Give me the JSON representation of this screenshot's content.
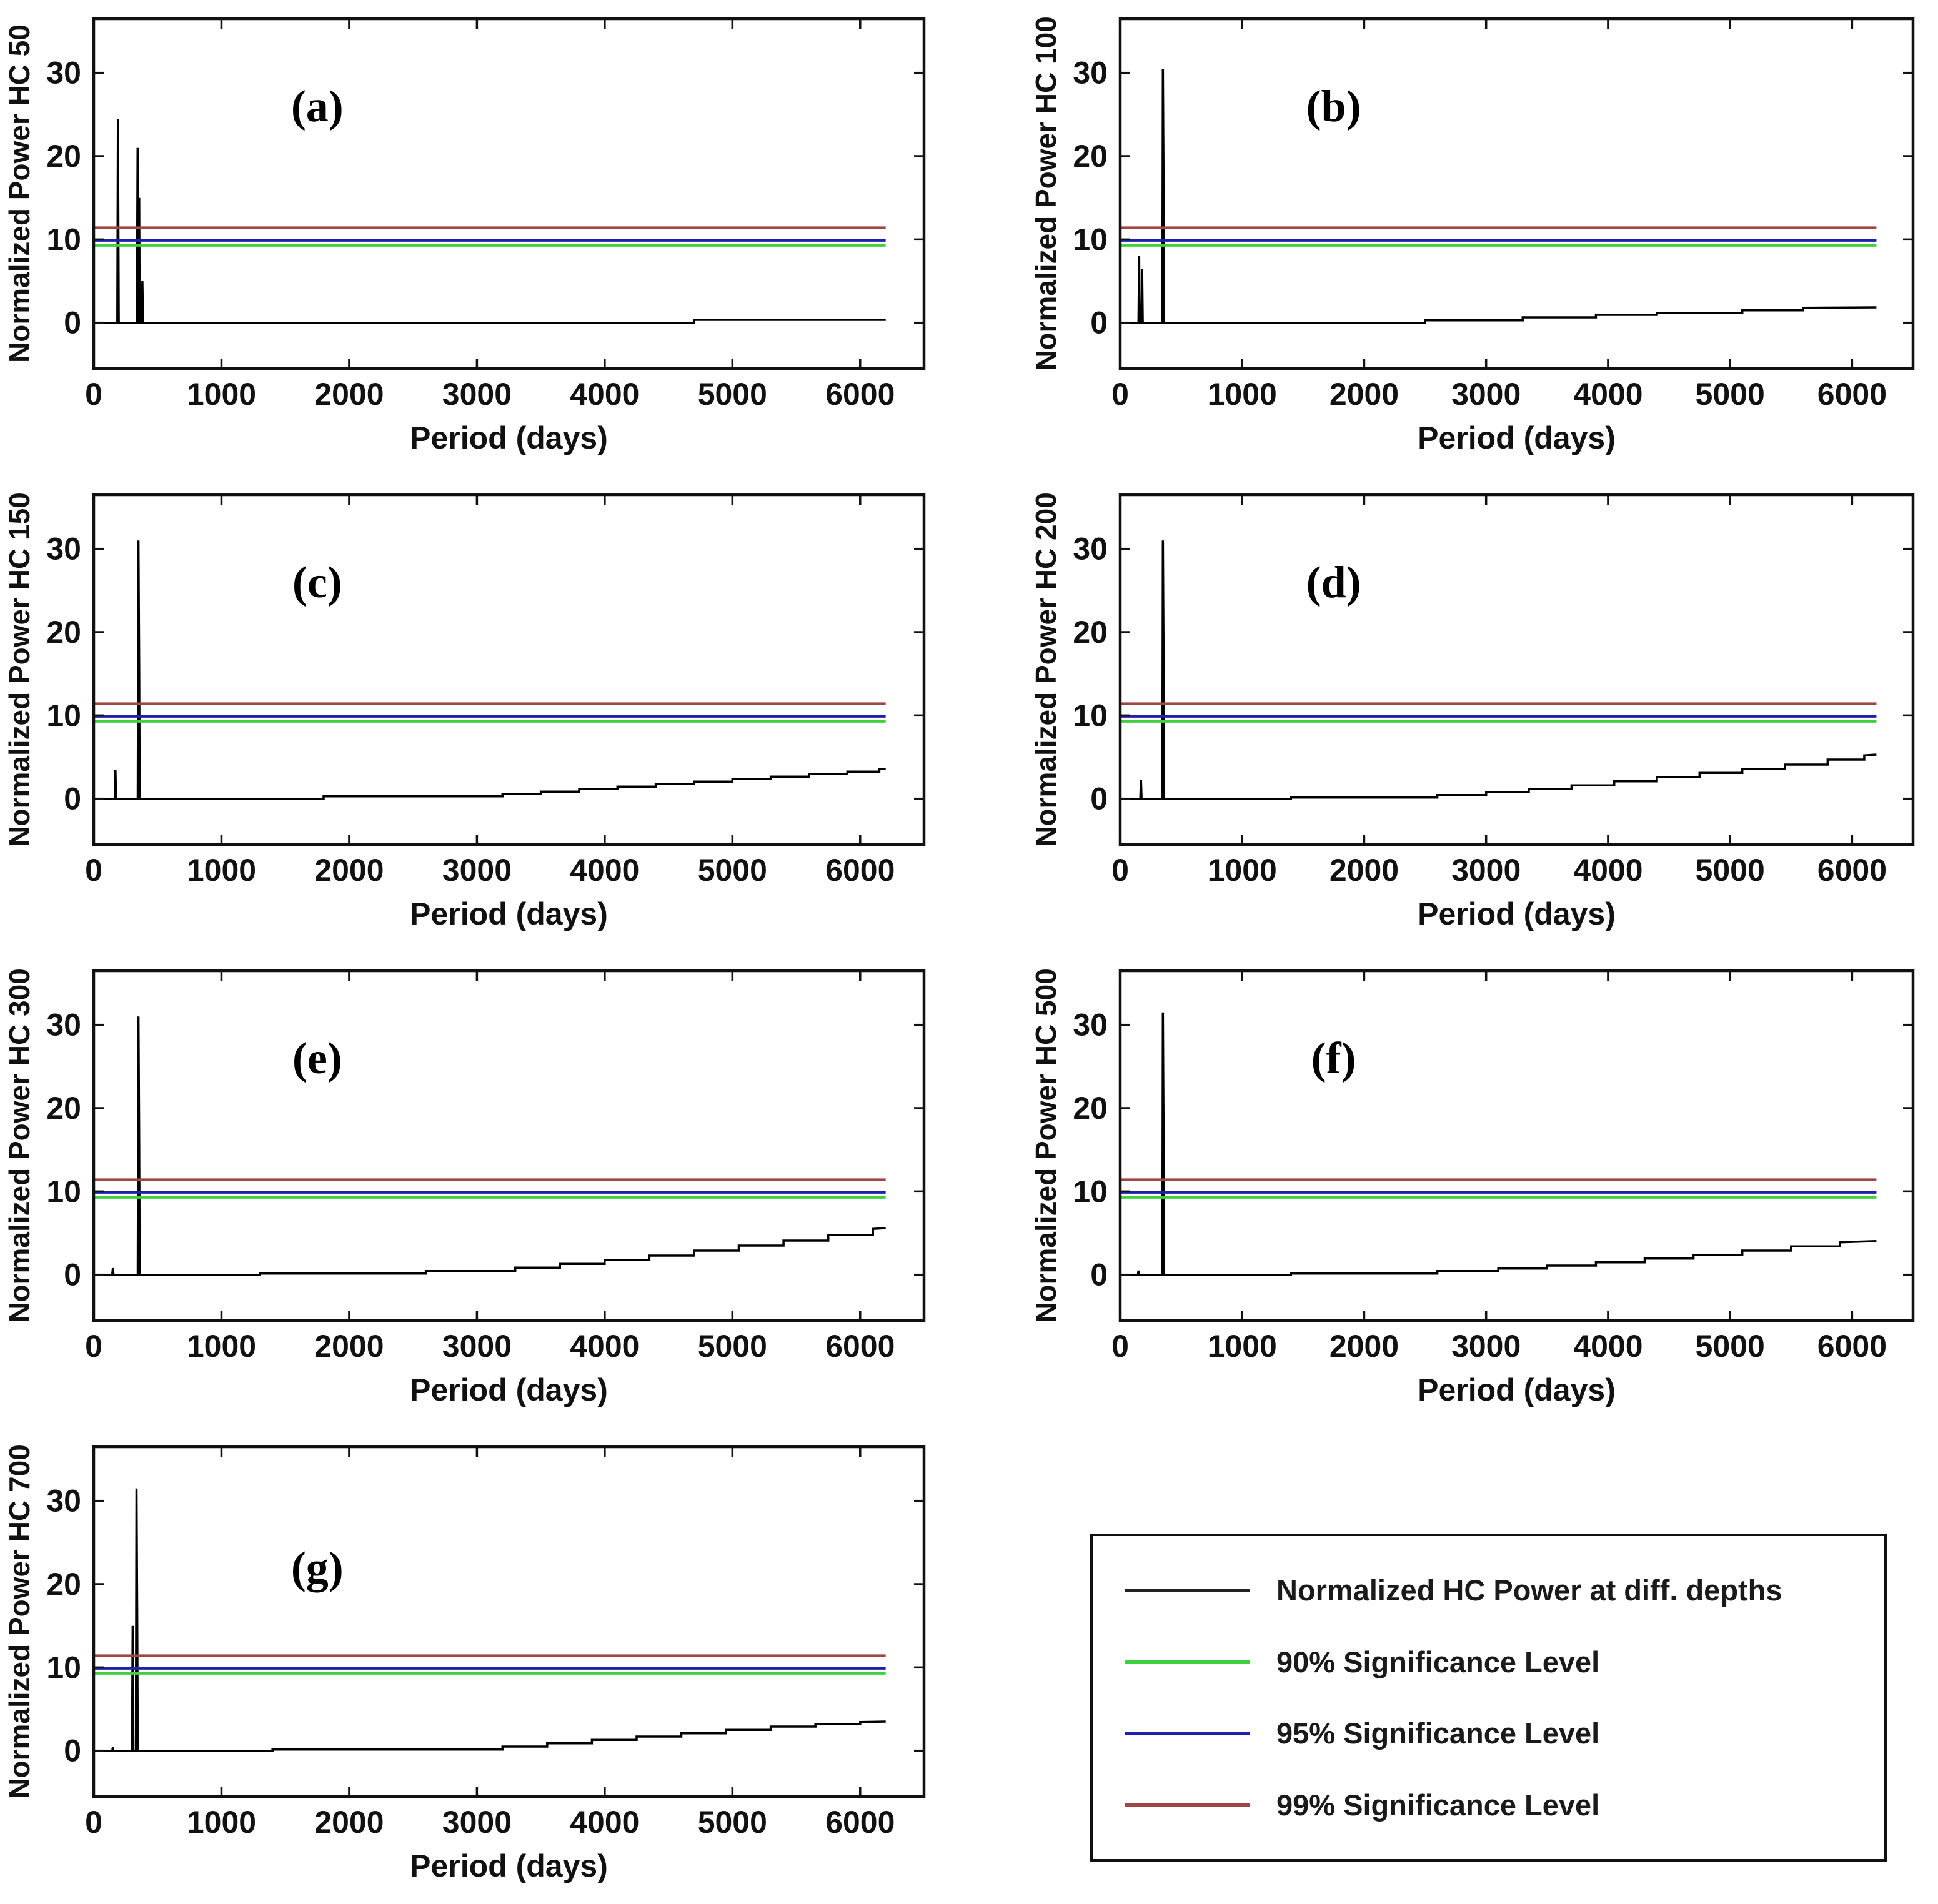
{
  "figure": {
    "xlabel": "Period (days)",
    "x_ticks": [
      0,
      1000,
      2000,
      3000,
      4000,
      5000,
      6000
    ],
    "y_ticks": [
      0,
      10,
      20,
      30
    ],
    "xlim": [
      0,
      6500
    ],
    "ylim": [
      -5.5,
      36.5
    ],
    "data_x_end": 6200,
    "colors": {
      "data_line": "#000000",
      "sig90": "#3fd03f",
      "sig95": "#2020a8",
      "sig99": "#a04646",
      "axis": "#111111",
      "text": "#111111"
    },
    "significance_levels": {
      "90": 9.3,
      "95": 9.9,
      "99": 11.4
    }
  },
  "chart_data": [
    {
      "type": "line",
      "panel_label": "(a)",
      "ylabel": "Normalized Power HC 50",
      "depth": 50,
      "label_pos": [
        1750,
        26
      ],
      "series_points": [
        [
          0,
          0
        ],
        [
          185,
          0
        ],
        [
          190,
          24.5
        ],
        [
          196,
          0
        ],
        [
          338,
          0
        ],
        [
          344,
          21
        ],
        [
          348,
          0
        ],
        [
          352,
          0
        ],
        [
          356,
          15
        ],
        [
          360,
          0
        ],
        [
          376,
          0
        ],
        [
          381,
          5
        ],
        [
          386,
          0
        ],
        [
          4700,
          0
        ],
        [
          4700,
          0.35
        ],
        [
          6200,
          0.35
        ]
      ]
    },
    {
      "type": "line",
      "panel_label": "(b)",
      "ylabel": "Normalized Power HC 100",
      "depth": 100,
      "label_pos": [
        1750,
        26
      ],
      "series_points": [
        [
          0,
          0
        ],
        [
          150,
          0
        ],
        [
          155,
          8
        ],
        [
          160,
          0
        ],
        [
          175,
          0
        ],
        [
          180,
          6.5
        ],
        [
          185,
          0
        ],
        [
          345,
          0
        ],
        [
          350,
          30.5
        ],
        [
          353,
          23
        ],
        [
          356,
          15.5
        ],
        [
          360,
          0
        ],
        [
          2500,
          0
        ],
        [
          2500,
          0.3
        ],
        [
          3300,
          0.3
        ],
        [
          3300,
          0.65
        ],
        [
          3900,
          0.65
        ],
        [
          3900,
          0.95
        ],
        [
          4400,
          0.95
        ],
        [
          4400,
          1.2
        ],
        [
          5100,
          1.2
        ],
        [
          5100,
          1.5
        ],
        [
          5600,
          1.5
        ],
        [
          5600,
          1.8
        ],
        [
          6200,
          1.85
        ]
      ]
    },
    {
      "type": "line",
      "panel_label": "(c)",
      "ylabel": "Normalized Power HC 150",
      "depth": 150,
      "label_pos": [
        1750,
        26
      ],
      "series_points": [
        [
          0,
          0
        ],
        [
          165,
          0
        ],
        [
          170,
          3.5
        ],
        [
          175,
          0
        ],
        [
          345,
          0
        ],
        [
          350,
          31
        ],
        [
          353,
          23
        ],
        [
          356,
          15.5
        ],
        [
          360,
          0
        ],
        [
          1800,
          0
        ],
        [
          1800,
          0.3
        ],
        [
          3200,
          0.3
        ],
        [
          3200,
          0.55
        ],
        [
          3500,
          0.55
        ],
        [
          3500,
          0.85
        ],
        [
          3800,
          0.85
        ],
        [
          3800,
          1.15
        ],
        [
          4100,
          1.15
        ],
        [
          4100,
          1.45
        ],
        [
          4400,
          1.45
        ],
        [
          4400,
          1.75
        ],
        [
          4700,
          1.75
        ],
        [
          4700,
          2.05
        ],
        [
          5000,
          2.05
        ],
        [
          5000,
          2.35
        ],
        [
          5300,
          2.35
        ],
        [
          5300,
          2.65
        ],
        [
          5600,
          2.65
        ],
        [
          5600,
          2.95
        ],
        [
          5900,
          2.95
        ],
        [
          5900,
          3.25
        ],
        [
          6150,
          3.25
        ],
        [
          6150,
          3.6
        ],
        [
          6200,
          3.6
        ]
      ]
    },
    {
      "type": "line",
      "panel_label": "(d)",
      "ylabel": "Normalized Power HC 200",
      "depth": 200,
      "label_pos": [
        1750,
        26
      ],
      "series_points": [
        [
          0,
          0
        ],
        [
          165,
          0
        ],
        [
          170,
          2.3
        ],
        [
          175,
          0
        ],
        [
          345,
          0
        ],
        [
          350,
          31
        ],
        [
          353,
          23.5
        ],
        [
          356,
          16
        ],
        [
          360,
          0
        ],
        [
          1400,
          0
        ],
        [
          1400,
          0.15
        ],
        [
          2600,
          0.15
        ],
        [
          2600,
          0.45
        ],
        [
          3000,
          0.45
        ],
        [
          3000,
          0.8
        ],
        [
          3350,
          0.8
        ],
        [
          3350,
          1.2
        ],
        [
          3700,
          1.2
        ],
        [
          3700,
          1.6
        ],
        [
          4050,
          1.6
        ],
        [
          4050,
          2.1
        ],
        [
          4400,
          2.1
        ],
        [
          4400,
          2.6
        ],
        [
          4750,
          2.6
        ],
        [
          4750,
          3.1
        ],
        [
          5100,
          3.1
        ],
        [
          5100,
          3.6
        ],
        [
          5450,
          3.6
        ],
        [
          5450,
          4.1
        ],
        [
          5800,
          4.1
        ],
        [
          5800,
          4.7
        ],
        [
          6100,
          4.7
        ],
        [
          6100,
          5.2
        ],
        [
          6200,
          5.3
        ]
      ]
    },
    {
      "type": "line",
      "panel_label": "(e)",
      "ylabel": "Normalized Power HC 300",
      "depth": 300,
      "label_pos": [
        1750,
        26
      ],
      "series_points": [
        [
          0,
          0
        ],
        [
          145,
          0
        ],
        [
          150,
          0.8
        ],
        [
          155,
          0
        ],
        [
          345,
          0
        ],
        [
          350,
          31
        ],
        [
          353,
          23.5
        ],
        [
          356,
          15.5
        ],
        [
          360,
          0
        ],
        [
          1300,
          0
        ],
        [
          1300,
          0.15
        ],
        [
          2600,
          0.15
        ],
        [
          2600,
          0.45
        ],
        [
          3300,
          0.45
        ],
        [
          3300,
          0.85
        ],
        [
          3650,
          0.85
        ],
        [
          3650,
          1.3
        ],
        [
          4000,
          1.3
        ],
        [
          4000,
          1.8
        ],
        [
          4350,
          1.8
        ],
        [
          4350,
          2.3
        ],
        [
          4700,
          2.3
        ],
        [
          4700,
          2.9
        ],
        [
          5050,
          2.9
        ],
        [
          5050,
          3.5
        ],
        [
          5400,
          3.5
        ],
        [
          5400,
          4.1
        ],
        [
          5750,
          4.1
        ],
        [
          5750,
          4.8
        ],
        [
          6100,
          4.8
        ],
        [
          6100,
          5.5
        ],
        [
          6200,
          5.6
        ]
      ]
    },
    {
      "type": "line",
      "panel_label": "(f)",
      "ylabel": "Normalized Power HC 500",
      "depth": 500,
      "label_pos": [
        1750,
        26
      ],
      "series_points": [
        [
          0,
          0
        ],
        [
          145,
          0
        ],
        [
          150,
          0.5
        ],
        [
          155,
          0
        ],
        [
          345,
          0
        ],
        [
          350,
          31.5
        ],
        [
          353,
          23.5
        ],
        [
          356,
          16
        ],
        [
          360,
          0
        ],
        [
          1400,
          0
        ],
        [
          1400,
          0.15
        ],
        [
          2600,
          0.15
        ],
        [
          2600,
          0.45
        ],
        [
          3100,
          0.45
        ],
        [
          3100,
          0.75
        ],
        [
          3500,
          0.75
        ],
        [
          3500,
          1.1
        ],
        [
          3900,
          1.1
        ],
        [
          3900,
          1.5
        ],
        [
          4300,
          1.5
        ],
        [
          4300,
          1.95
        ],
        [
          4700,
          1.95
        ],
        [
          4700,
          2.4
        ],
        [
          5100,
          2.4
        ],
        [
          5100,
          2.9
        ],
        [
          5500,
          2.9
        ],
        [
          5500,
          3.4
        ],
        [
          5900,
          3.4
        ],
        [
          5900,
          3.9
        ],
        [
          6200,
          4.05
        ]
      ]
    },
    {
      "type": "line",
      "panel_label": "(g)",
      "ylabel": "Normalized Power HC 700",
      "depth": 700,
      "label_pos": [
        1750,
        22
      ],
      "series_points": [
        [
          0,
          0
        ],
        [
          145,
          0
        ],
        [
          150,
          0.4
        ],
        [
          155,
          0
        ],
        [
          300,
          0
        ],
        [
          305,
          15
        ],
        [
          310,
          0
        ],
        [
          330,
          0
        ],
        [
          335,
          31.5
        ],
        [
          338,
          23
        ],
        [
          341,
          15.5
        ],
        [
          345,
          0
        ],
        [
          1400,
          0
        ],
        [
          1400,
          0.15
        ],
        [
          3200,
          0.15
        ],
        [
          3200,
          0.5
        ],
        [
          3550,
          0.5
        ],
        [
          3550,
          0.9
        ],
        [
          3900,
          0.9
        ],
        [
          3900,
          1.3
        ],
        [
          4250,
          1.3
        ],
        [
          4250,
          1.7
        ],
        [
          4600,
          1.7
        ],
        [
          4600,
          2.1
        ],
        [
          4950,
          2.1
        ],
        [
          4950,
          2.5
        ],
        [
          5300,
          2.5
        ],
        [
          5300,
          2.9
        ],
        [
          5650,
          2.9
        ],
        [
          5650,
          3.2
        ],
        [
          6000,
          3.2
        ],
        [
          6000,
          3.45
        ],
        [
          6200,
          3.5
        ]
      ]
    }
  ],
  "legend": {
    "entries": [
      {
        "label": "Normalized HC Power at diff. depths",
        "color": "#222222"
      },
      {
        "label": "90% Significance Level",
        "color": "#3fd03f"
      },
      {
        "label": "95% Significance Level",
        "color": "#2020a8"
      },
      {
        "label": "99% Significance Level",
        "color": "#a04646"
      }
    ]
  }
}
